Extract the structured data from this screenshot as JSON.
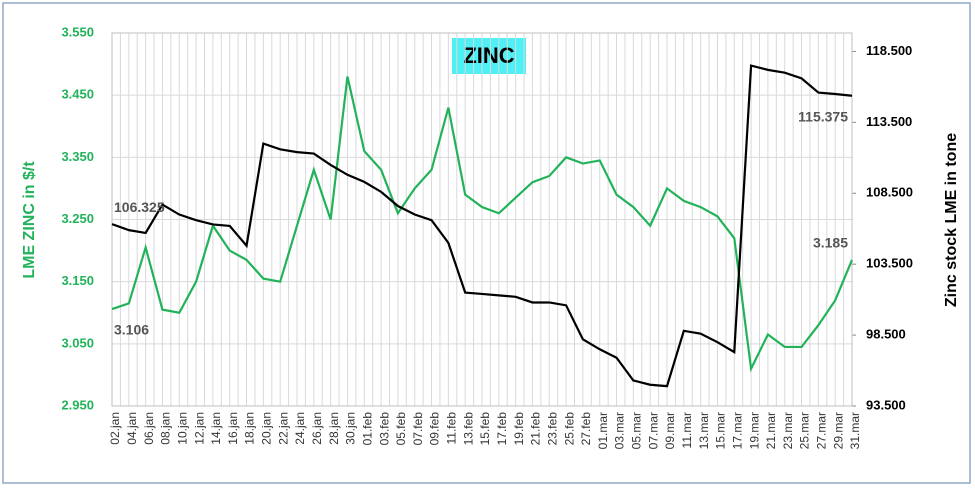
{
  "chart_data": {
    "type": "line",
    "title": "ZINC",
    "categories": [
      "02.jan",
      "04.jan",
      "06.jan",
      "08.jan",
      "10.jan",
      "12.jan",
      "14.jan",
      "16.jan",
      "18.jan",
      "20.jan",
      "22.jan",
      "24.jan",
      "26.jan",
      "28.jan",
      "30.jan",
      "01.feb",
      "03.feb",
      "05.feb",
      "07.feb",
      "09.feb",
      "11.feb",
      "13.feb",
      "15.feb",
      "17.feb",
      "19.feb",
      "21.feb",
      "23.feb",
      "25.feb",
      "27.feb",
      "01.mar",
      "03.mar",
      "05.mar",
      "07.mar",
      "09.mar",
      "11.mar",
      "13.mar",
      "15.mar",
      "17.mar",
      "19.mar",
      "21.mar",
      "23.mar",
      "25.mar",
      "27.mar",
      "29.mar",
      "31.mar"
    ],
    "y_label": "LME ZINC in $/t",
    "y2_label": "Zinc stock LME in tone",
    "ylim": [
      2950,
      3550
    ],
    "yticks": [
      {
        "value": 2950,
        "label": "2.950"
      },
      {
        "value": 3050,
        "label": "3.050"
      },
      {
        "value": 3150,
        "label": "3.150"
      },
      {
        "value": 3250,
        "label": "3.250"
      },
      {
        "value": 3350,
        "label": "3.350"
      },
      {
        "value": 3450,
        "label": "3.450"
      },
      {
        "value": 3550,
        "label": "3.550"
      }
    ],
    "y2lim": [
      93500,
      119800
    ],
    "y2ticks": [
      {
        "value": 93500,
        "label": "93.500"
      },
      {
        "value": 98500,
        "label": "98.500"
      },
      {
        "value": 103500,
        "label": "103.500"
      },
      {
        "value": 108500,
        "label": "108.500"
      },
      {
        "value": 113500,
        "label": "113.500"
      },
      {
        "value": 118500,
        "label": "118.500"
      }
    ],
    "grid": true,
    "series": [
      {
        "name": "LME ZINC",
        "color": "#22b35a",
        "values": [
          3106,
          3115,
          3205,
          3105,
          3100,
          3150,
          3240,
          3200,
          3185,
          3155,
          3150,
          3240,
          3330,
          3250,
          3480,
          3360,
          3330,
          3260,
          3300,
          3330,
          3430,
          3290,
          3270,
          3260,
          3285,
          3310,
          3320,
          3350,
          3340,
          3345,
          3290,
          3270,
          3240,
          3300,
          3280,
          3270,
          3255,
          3220,
          3010,
          3065,
          3045,
          3045,
          3080,
          3120,
          3185
        ],
        "value_labels": [
          "3.106",
          null,
          null,
          null,
          null,
          null,
          null,
          null,
          null,
          null,
          null,
          null,
          null,
          null,
          null,
          null,
          null,
          null,
          null,
          null,
          null,
          null,
          null,
          null,
          null,
          null,
          null,
          null,
          null,
          null,
          null,
          null,
          null,
          null,
          null,
          null,
          null,
          null,
          null,
          null,
          null,
          null,
          null,
          null,
          "3.185"
        ]
      },
      {
        "name": "Zinc stock LME",
        "color": "#000000",
        "axis": "y2",
        "values": [
          106325,
          105900,
          105700,
          107700,
          107000,
          106600,
          106300,
          106200,
          104800,
          112000,
          111600,
          111400,
          111300,
          110500,
          109800,
          109300,
          108600,
          107600,
          107000,
          106600,
          105000,
          101500,
          101400,
          101300,
          101200,
          100800,
          100800,
          100600,
          98200,
          97500,
          96900,
          95300,
          95000,
          94900,
          98800,
          98600,
          98000,
          97300,
          117500,
          117200,
          117000,
          116600,
          115600,
          115500,
          115375
        ],
        "value_labels": [
          "106.325",
          null,
          null,
          null,
          null,
          null,
          null,
          null,
          null,
          null,
          null,
          null,
          null,
          null,
          null,
          null,
          null,
          null,
          null,
          null,
          null,
          null,
          null,
          null,
          null,
          null,
          null,
          null,
          null,
          null,
          null,
          null,
          null,
          null,
          null,
          null,
          null,
          null,
          null,
          null,
          null,
          null,
          null,
          null,
          "115.375"
        ]
      }
    ]
  }
}
